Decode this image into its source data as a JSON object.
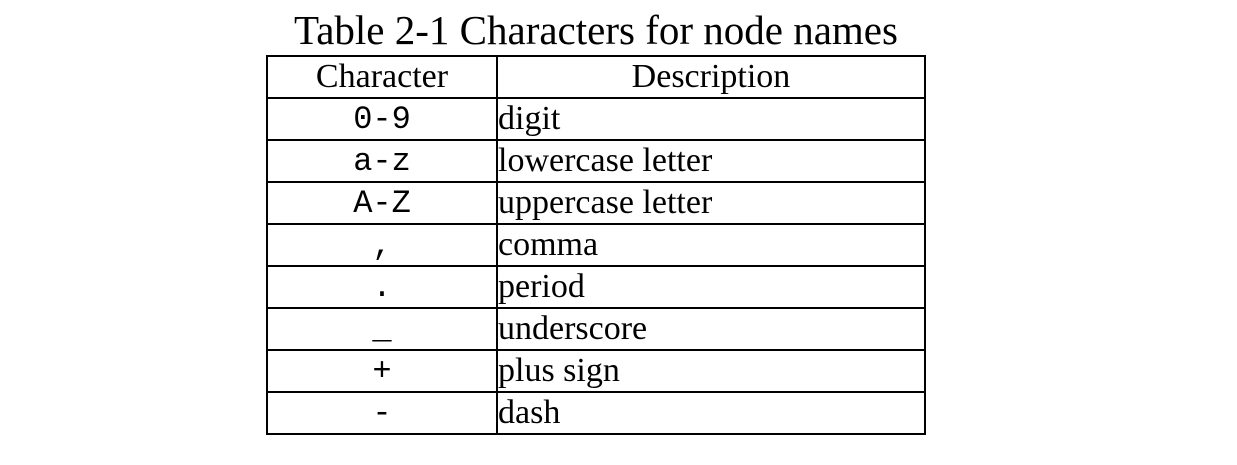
{
  "caption": "Table 2-1 Characters for node names",
  "table": {
    "headers": [
      "Character",
      "Description"
    ],
    "rows": [
      {
        "character": "0-9",
        "description": "digit"
      },
      {
        "character": "a-z",
        "description": "lowercase letter"
      },
      {
        "character": "A-Z",
        "description": "uppercase letter"
      },
      {
        "character": ",",
        "description": "comma"
      },
      {
        "character": ".",
        "description": "period"
      },
      {
        "character": "_",
        "description": "underscore"
      },
      {
        "character": "+",
        "description": "plus sign"
      },
      {
        "character": "-",
        "description": "dash"
      }
    ]
  }
}
